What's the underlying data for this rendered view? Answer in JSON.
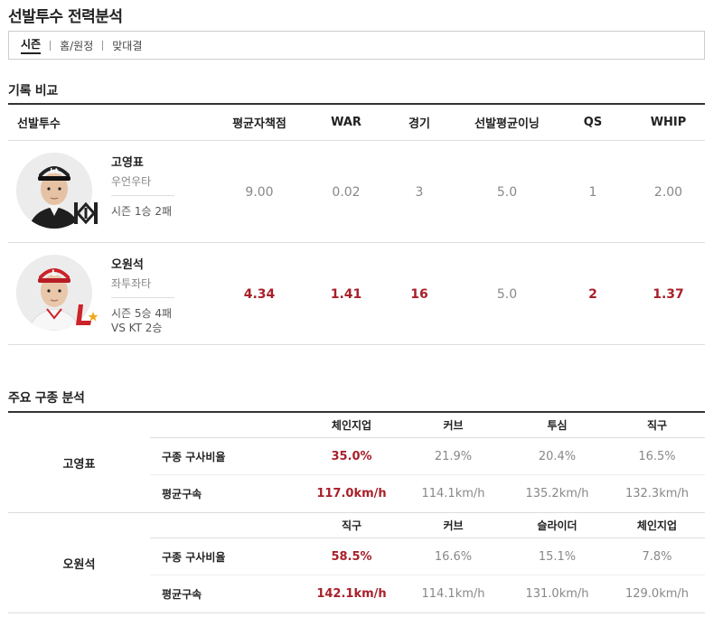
{
  "page_title": "선발투수 전력분석",
  "tabs": [
    {
      "label": "시즌",
      "active": true
    },
    {
      "label": "홈/원정",
      "active": false
    },
    {
      "label": "맞대결",
      "active": false
    }
  ],
  "compare": {
    "section_title": "기록 비교",
    "headers": [
      "선발투수",
      "평균자책점",
      "WAR",
      "경기",
      "선발평균이닝",
      "QS",
      "WHIP"
    ],
    "pitchers": [
      {
        "name": "고영표",
        "hand": "우언우타",
        "record_line1": "시즌 1승 2패",
        "record_line2": "",
        "team_logo": "kt-wiz-logo",
        "cap_color": "#222222",
        "stats": [
          "9.00",
          "0.02",
          "3",
          "5.0",
          "1",
          "2.00"
        ],
        "highlight": [
          false,
          false,
          false,
          false,
          false,
          false
        ]
      },
      {
        "name": "오원석",
        "hand": "좌투좌타",
        "record_line1": "시즌 5승 4패",
        "record_line2": "VS KT 2승",
        "team_logo": "ssg-landers-logo",
        "cap_color": "#cc2229",
        "stats": [
          "4.34",
          "1.41",
          "16",
          "5.0",
          "2",
          "1.37"
        ],
        "highlight": [
          true,
          true,
          true,
          false,
          true,
          true
        ]
      }
    ]
  },
  "pitch": {
    "section_title": "주요 구종 분석",
    "row_labels": [
      "구종 구사비율",
      "평균구속"
    ],
    "blocks": [
      {
        "name": "고영표",
        "types": [
          "체인지업",
          "커브",
          "투심",
          "직구"
        ],
        "ratio": [
          "35.0%",
          "21.9%",
          "20.4%",
          "16.5%"
        ],
        "speed": [
          "117.0km/h",
          "114.1km/h",
          "135.2km/h",
          "132.3km/h"
        ]
      },
      {
        "name": "오원석",
        "types": [
          "직구",
          "커브",
          "슬라이더",
          "체인지업"
        ],
        "ratio": [
          "58.5%",
          "16.6%",
          "15.1%",
          "7.8%"
        ],
        "speed": [
          "142.1km/h",
          "114.1km/h",
          "131.0km/h",
          "129.0km/h"
        ]
      }
    ],
    "accent": "#a8202a"
  }
}
